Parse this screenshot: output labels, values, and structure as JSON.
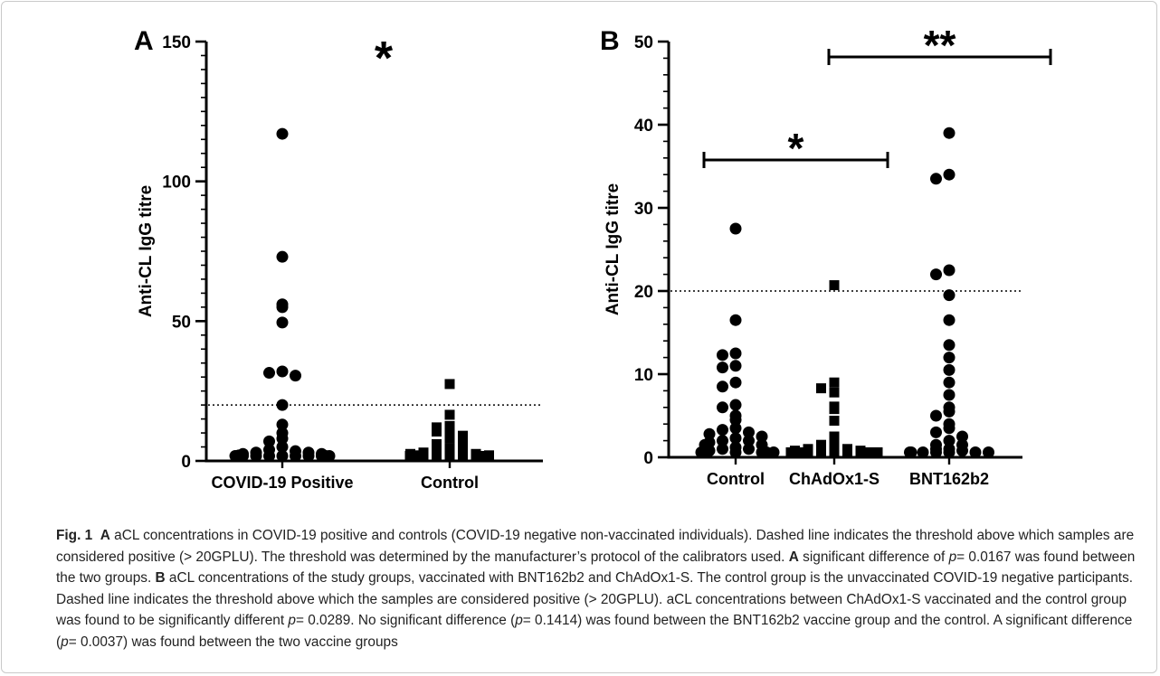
{
  "colors": {
    "ink": "#000000",
    "caption_text": "#222222",
    "frame": "#c9c9c9"
  },
  "chart_data": [
    {
      "type": "scatter",
      "panel_label": "A",
      "xlabel": "",
      "ylabel": "Anti-CL IgG titre",
      "ylim": [
        0,
        150
      ],
      "yticks": [
        "0",
        "50",
        "100",
        "150"
      ],
      "categories": [
        "COVID-19 Positive",
        "Control"
      ],
      "threshold": 20,
      "threshold_style": "dotted",
      "significance": [
        {
          "label": "*",
          "between": [
            "COVID-19 Positive",
            "Control"
          ],
          "bracket": false
        }
      ],
      "series": [
        {
          "category": "COVID-19 Positive",
          "marker": "circle",
          "values": [
            117,
            73,
            56,
            55,
            49.5,
            32,
            31.5,
            30.5,
            20,
            13,
            10,
            8,
            7,
            5,
            4,
            3.5,
            3,
            3,
            2.5,
            2.5,
            2,
            2,
            1.5,
            1.5,
            1,
            1,
            1,
            0.5,
            0.5,
            0.5,
            0.3,
            0.3,
            0.2,
            0.2,
            0.1
          ]
        },
        {
          "category": "Control",
          "marker": "square",
          "values": [
            27.5,
            16.5,
            12.5,
            12,
            11,
            10.5,
            9,
            8,
            6,
            5.5,
            4.5,
            3.5,
            3,
            3,
            2.5,
            2.5,
            2,
            2,
            1.5,
            1.5,
            1.5,
            1,
            1,
            1,
            0.5,
            0.5,
            0.5,
            0.3,
            0.3,
            0.2
          ]
        }
      ]
    },
    {
      "type": "scatter",
      "panel_label": "B",
      "xlabel": "",
      "ylabel": "Anti-CL IgG titre",
      "ylim": [
        0,
        50
      ],
      "yticks": [
        "0",
        "10",
        "20",
        "30",
        "40",
        "50"
      ],
      "categories": [
        "Control",
        "ChAdOx1-S",
        "BNT162b2"
      ],
      "threshold": 20,
      "threshold_style": "dotted",
      "significance": [
        {
          "label": "*",
          "between": [
            "Control",
            "ChAdOx1-S"
          ],
          "bracket": true
        },
        {
          "label": "**",
          "between": [
            "ChAdOx1-S",
            "BNT162b2"
          ],
          "bracket": true
        }
      ],
      "series": [
        {
          "category": "Control",
          "marker": "circle",
          "values": [
            27.5,
            16.5,
            12.5,
            12.3,
            11,
            10.8,
            9,
            8.5,
            6.3,
            6,
            5,
            4.5,
            3.5,
            3.3,
            3,
            2.8,
            2.5,
            2.3,
            2,
            2,
            1.8,
            1.5,
            1.5,
            1.2,
            1,
            1,
            0.8,
            0.5,
            0.5,
            0.3,
            0.3,
            0.2,
            0.1
          ]
        },
        {
          "category": "ChAdOx1-S",
          "marker": "square",
          "values": [
            20.7,
            9,
            8.3,
            7.8,
            6.1,
            5.8,
            4.4,
            2.5,
            2.1,
            1.5,
            1.3,
            1.2,
            1,
            1,
            0.8,
            0.8,
            0.6,
            0.5,
            0.5,
            0.4,
            0.3,
            0.3,
            0.2,
            0.2,
            0.1,
            0.1,
            0.1,
            0.05,
            0.05,
            0.05
          ]
        },
        {
          "category": "BNT162b2",
          "marker": "circle",
          "values": [
            39,
            34,
            33.5,
            22.5,
            22,
            19.5,
            16.5,
            13.5,
            12,
            10.5,
            9,
            7.5,
            6,
            5.5,
            5,
            4,
            3.5,
            3,
            2.5,
            2,
            1.5,
            1.5,
            1,
            1,
            0.8,
            0.5,
            0.5,
            0.3,
            0.3,
            0.2,
            0.1,
            0.1
          ]
        }
      ]
    }
  ],
  "caption": {
    "fig_label": "Fig. 1",
    "seg1_label": "A",
    "seg1_text": "aCL concentrations in COVID-19 positive and controls (COVID-19 negative non-vaccinated individuals). Dashed line indicates the threshold above which samples are considered positive (> 20GPLU). The threshold was determined by the manufacturer’s protocol of the calibrators used.",
    "seg2_label": "A",
    "seg2_text_before": "significant difference of",
    "seg2_p": "p",
    "seg2_text_after": "= 0.0167 was found between the two groups.",
    "seg3_label": "B",
    "seg3_text_before": "aCL concentrations of the study groups, vaccinated with BNT162b2 and ChAdOx1-S. The control group is the unvaccinated COVID-19 negative participants. Dashed line indicates the threshold above which the samples are considered positive (> 20GPLU). aCL concentrations between ChAdOx1-S vaccinated and the control group was found to be significantly different",
    "seg3_p1": "p",
    "seg3_text_mid1": "= 0.0289. No significant difference (",
    "seg3_p2": "p",
    "seg3_text_mid2": "= 0.1414) was found between the BNT162b2 vaccine group and the control. A significant difference (",
    "seg3_p3": "p",
    "seg3_text_after": "= 0.0037) was found between the two vaccine groups"
  }
}
